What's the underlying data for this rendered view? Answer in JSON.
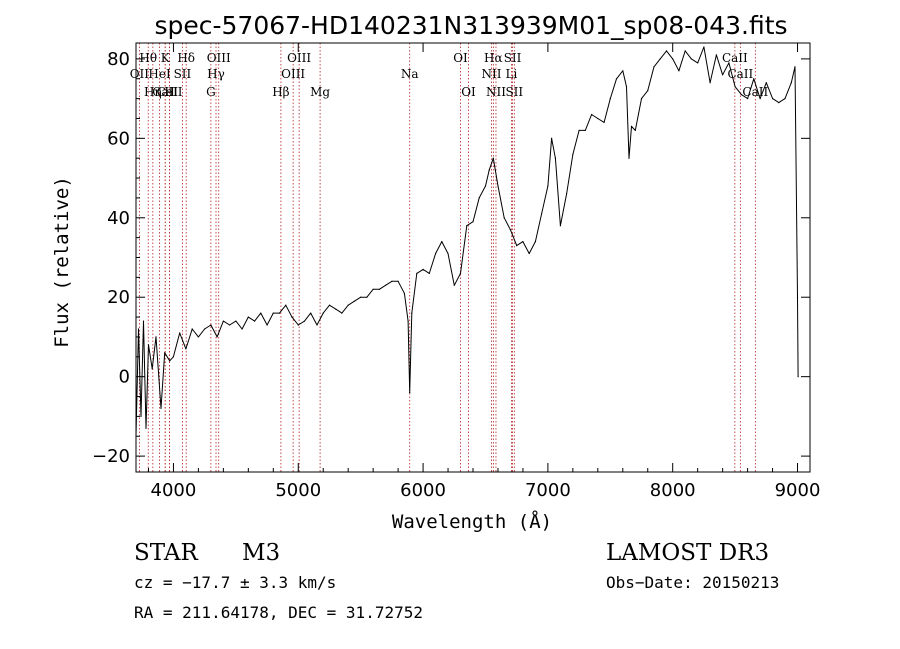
{
  "chart_data": {
    "type": "line",
    "title": "spec-57067-HD140231N313939M01_sp08-043.fits",
    "xlabel": "Wavelength (Å)",
    "ylabel": "Flux (relative)",
    "xlim": [
      3700,
      9100
    ],
    "ylim": [
      -24,
      84
    ],
    "x_ticks": [
      4000,
      5000,
      6000,
      7000,
      8000,
      9000
    ],
    "y_ticks": [
      -20,
      0,
      20,
      40,
      60,
      80
    ],
    "series": [
      {
        "name": "flux",
        "x": [
          3700,
          3720,
          3740,
          3760,
          3780,
          3800,
          3830,
          3860,
          3900,
          3930,
          3970,
          4000,
          4050,
          4100,
          4150,
          4200,
          4250,
          4300,
          4350,
          4400,
          4450,
          4500,
          4550,
          4600,
          4650,
          4700,
          4750,
          4800,
          4850,
          4900,
          4950,
          5000,
          5050,
          5100,
          5150,
          5200,
          5250,
          5300,
          5350,
          5400,
          5450,
          5500,
          5550,
          5600,
          5650,
          5700,
          5750,
          5800,
          5850,
          5880,
          5893,
          5910,
          5950,
          6000,
          6050,
          6100,
          6150,
          6200,
          6250,
          6300,
          6350,
          6400,
          6450,
          6500,
          6530,
          6563,
          6600,
          6650,
          6700,
          6750,
          6800,
          6850,
          6900,
          6950,
          7000,
          7030,
          7060,
          7100,
          7150,
          7200,
          7250,
          7300,
          7350,
          7400,
          7450,
          7500,
          7550,
          7600,
          7630,
          7650,
          7670,
          7700,
          7750,
          7800,
          7850,
          7900,
          7950,
          8000,
          8050,
          8100,
          8150,
          8200,
          8250,
          8300,
          8350,
          8400,
          8450,
          8500,
          8550,
          8600,
          8650,
          8700,
          8750,
          8800,
          8850,
          8900,
          8950,
          8980,
          9000,
          9005
        ],
        "values": [
          -15,
          12,
          -10,
          14,
          -13,
          8,
          2,
          10,
          -8,
          6,
          4,
          5,
          11,
          7,
          12,
          10,
          12,
          13,
          10,
          14,
          13,
          14,
          12,
          15,
          14,
          16,
          13,
          16,
          16,
          18,
          15,
          13,
          14,
          16,
          13,
          16,
          18,
          17,
          16,
          18,
          19,
          20,
          20,
          22,
          22,
          23,
          24,
          24,
          21,
          14,
          -4,
          16,
          26,
          27,
          26,
          31,
          34,
          31,
          23,
          26,
          38,
          39,
          45,
          48,
          52,
          55,
          48,
          40,
          37,
          33,
          34,
          31,
          34,
          41,
          48,
          60,
          55,
          38,
          46,
          56,
          62,
          62,
          66,
          65,
          64,
          70,
          75,
          77,
          73,
          55,
          63,
          62,
          70,
          72,
          78,
          80,
          82,
          80,
          77,
          82,
          80,
          79,
          83,
          74,
          81,
          76,
          79,
          73,
          71,
          70,
          75,
          70,
          74,
          70,
          69,
          70,
          74,
          78,
          20,
          0
        ]
      }
    ],
    "lines": [
      {
        "label": "CaII",
        "wave": 3934,
        "level": "3"
      },
      {
        "label": "CaII",
        "wave": 3969,
        "level": "3"
      },
      {
        "label": "Hθ",
        "wave": 3798,
        "level": "1"
      },
      {
        "label": "Hη",
        "wave": 3835,
        "level": "3"
      },
      {
        "label": "K",
        "wave": 3934,
        "level": "1"
      },
      {
        "label": "H",
        "wave": 3969,
        "level": "3"
      },
      {
        "label": "OII",
        "wave": 3727,
        "level": "2"
      },
      {
        "label": "HeI",
        "wave": 3889,
        "level": "2"
      },
      {
        "label": "SII",
        "wave": 4072,
        "level": "2"
      },
      {
        "label": "Hδ",
        "wave": 4102,
        "level": "1"
      },
      {
        "label": "OIII",
        "wave": 4363,
        "level": "1"
      },
      {
        "label": "Hγ",
        "wave": 4341,
        "level": "2"
      },
      {
        "label": "G",
        "wave": 4300,
        "level": "3"
      },
      {
        "label": "Hβ",
        "wave": 4861,
        "level": "3"
      },
      {
        "label": "OIII",
        "wave": 4959,
        "level": "2"
      },
      {
        "label": "OIII",
        "wave": 5007,
        "level": "1"
      },
      {
        "label": "Mg",
        "wave": 5175,
        "level": "3"
      },
      {
        "label": "Na",
        "wave": 5893,
        "level": "2"
      },
      {
        "label": "OI",
        "wave": 6300,
        "level": "1"
      },
      {
        "label": "OI",
        "wave": 6364,
        "level": "3"
      },
      {
        "label": "Hα",
        "wave": 6563,
        "level": "1"
      },
      {
        "label": "NII",
        "wave": 6548,
        "level": "2"
      },
      {
        "label": "NII",
        "wave": 6584,
        "level": "3"
      },
      {
        "label": "SII",
        "wave": 6717,
        "level": "1"
      },
      {
        "label": "Li",
        "wave": 6708,
        "level": "2"
      },
      {
        "label": "SII",
        "wave": 6731,
        "level": "3"
      },
      {
        "label": "CaII",
        "wave": 8498,
        "level": "1"
      },
      {
        "label": "CaII",
        "wave": 8542,
        "level": "2"
      },
      {
        "label": "CaII",
        "wave": 8662,
        "level": "3"
      }
    ]
  },
  "info": {
    "obj_class": "STAR",
    "subclass": "M3",
    "cz": "cz = −17.7 ± 3.3 km/s",
    "coords": "RA = 211.64178, DEC =  31.72752",
    "survey": "LAMOST DR3",
    "obs_date": "Obs−Date: 20150213"
  },
  "colors": {
    "line_marker": "#b22222",
    "spectrum": "#000000"
  }
}
